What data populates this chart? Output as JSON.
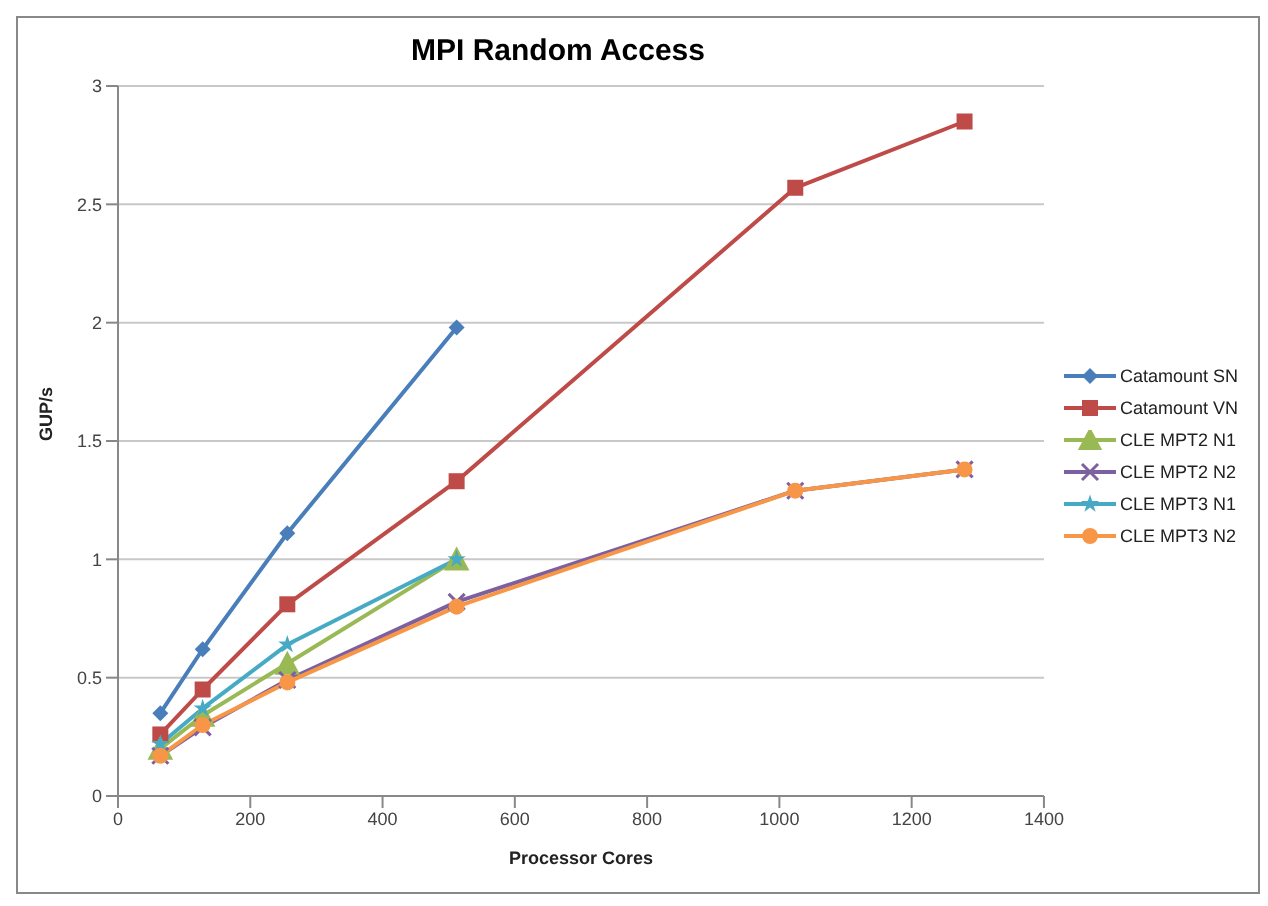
{
  "chart_data": {
    "type": "line",
    "title": "MPI Random Access",
    "xlabel": "Processor Cores",
    "ylabel": "GUP/s",
    "xlim": [
      0,
      1400
    ],
    "xticks": [
      0,
      200,
      400,
      600,
      800,
      1000,
      1200,
      1400
    ],
    "ylim": [
      0,
      3
    ],
    "yticks": [
      0,
      0.5,
      1,
      1.5,
      2,
      2.5,
      3
    ],
    "grid": "y",
    "legend": "right",
    "line_style": "solid",
    "series": [
      {
        "name": "Catamount SN",
        "color": "#4a7ebb",
        "marker": "diamond",
        "x": [
          64,
          128,
          256,
          512
        ],
        "values": [
          0.35,
          0.62,
          1.11,
          1.98
        ]
      },
      {
        "name": "Catamount VN",
        "color": "#be4b48",
        "marker": "square",
        "x": [
          64,
          128,
          256,
          512,
          1024,
          1280
        ],
        "values": [
          0.26,
          0.45,
          0.81,
          1.33,
          2.57,
          2.85
        ]
      },
      {
        "name": "CLE MPT2 N1",
        "color": "#98b954",
        "marker": "triangle",
        "x": [
          64,
          128,
          256,
          512
        ],
        "values": [
          0.2,
          0.34,
          0.56,
          1.0
        ]
      },
      {
        "name": "CLE MPT2 N2",
        "color": "#7d60a0",
        "marker": "cross",
        "x": [
          64,
          128,
          256,
          512,
          1024,
          1280
        ],
        "values": [
          0.17,
          0.29,
          0.49,
          0.82,
          1.29,
          1.38
        ]
      },
      {
        "name": "CLE MPT3 N1",
        "color": "#46aac5",
        "marker": "star",
        "x": [
          64,
          128,
          256,
          512
        ],
        "values": [
          0.22,
          0.37,
          0.64,
          1.0
        ]
      },
      {
        "name": "CLE MPT3 N2",
        "color": "#f79646",
        "marker": "circle",
        "x": [
          64,
          128,
          256,
          512,
          1024,
          1280
        ],
        "values": [
          0.17,
          0.3,
          0.48,
          0.8,
          1.29,
          1.38
        ]
      }
    ]
  }
}
